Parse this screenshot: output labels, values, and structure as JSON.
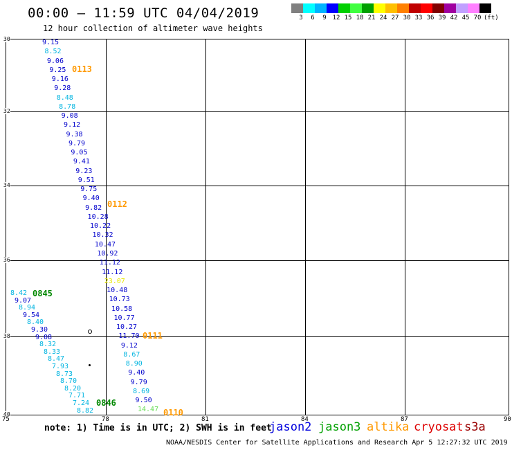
{
  "header": {
    "title": "00:00 – 11:59 UTC 04/04/2019",
    "subtitle": "12 hour collection of altimeter wave heights"
  },
  "legend": {
    "colors": [
      "#808080",
      "#00ffff",
      "#00b4ff",
      "#0000ff",
      "#00d000",
      "#40ff40",
      "#00a000",
      "#ffff00",
      "#ffc000",
      "#ff8000",
      "#c00000",
      "#ff0000",
      "#800000",
      "#a000a0",
      "#c0a0ff",
      "#ff80ff",
      "#000000"
    ],
    "labels": [
      "3",
      "6",
      "9",
      "12",
      "15",
      "18",
      "21",
      "24",
      "27",
      "30",
      "33",
      "36",
      "39",
      "42",
      "45",
      "70",
      "(ft)"
    ]
  },
  "axes": {
    "lat_ticks": [
      "30",
      "32",
      "34",
      "36",
      "38",
      "40"
    ],
    "lon_ticks": [
      "75",
      "78",
      "81",
      "84",
      "87",
      "90"
    ]
  },
  "measurements": {
    "track_a": [
      "9.15",
      "8.52",
      "9.06",
      "9.25",
      "9.16",
      "9.28",
      "8.48",
      "8.78",
      "9.08",
      "9.12",
      "9.38",
      "9.79",
      "9.05",
      "9.41",
      "9.23",
      "9.51",
      "9.75",
      "9.40",
      "9.82",
      "10.28",
      "10.22",
      "10.32",
      "10.47",
      "10.92",
      "11.12",
      "11.12",
      "23.07",
      "10.48",
      "10.73",
      "10.58",
      "10.77",
      "10.27",
      "11.70",
      "9.12",
      "8.67",
      "8.90",
      "9.40",
      "9.79",
      "8.69",
      "9.50",
      "14.47"
    ],
    "track_b": [
      "8.42",
      "9.07",
      "8.94",
      "9.54",
      "8.40",
      "9.30",
      "9.08",
      "8.32",
      "8.33",
      "8.47",
      "7.93",
      "8.73",
      "8.70",
      "8.20",
      "7.71",
      "7.24",
      "8.82"
    ],
    "track_labels": [
      "0113",
      "0112",
      "0111",
      "0110",
      "0845",
      "0846"
    ]
  },
  "footer": {
    "note": "note: 1) Time is in UTC; 2) SWH is in feet",
    "satellites": [
      {
        "name": "jason2",
        "color": "#0000dd"
      },
      {
        "name": "jason3",
        "color": "#00a000"
      },
      {
        "name": "altika",
        "color": "#ff9900"
      },
      {
        "name": "cryosat",
        "color": "#dd0000"
      },
      {
        "name": "s3a",
        "color": "#990000"
      }
    ],
    "credit": "NOAA/NESDIS Center for Satellite Applications and Research   Apr  5 12:27:32 UTC 2019"
  }
}
